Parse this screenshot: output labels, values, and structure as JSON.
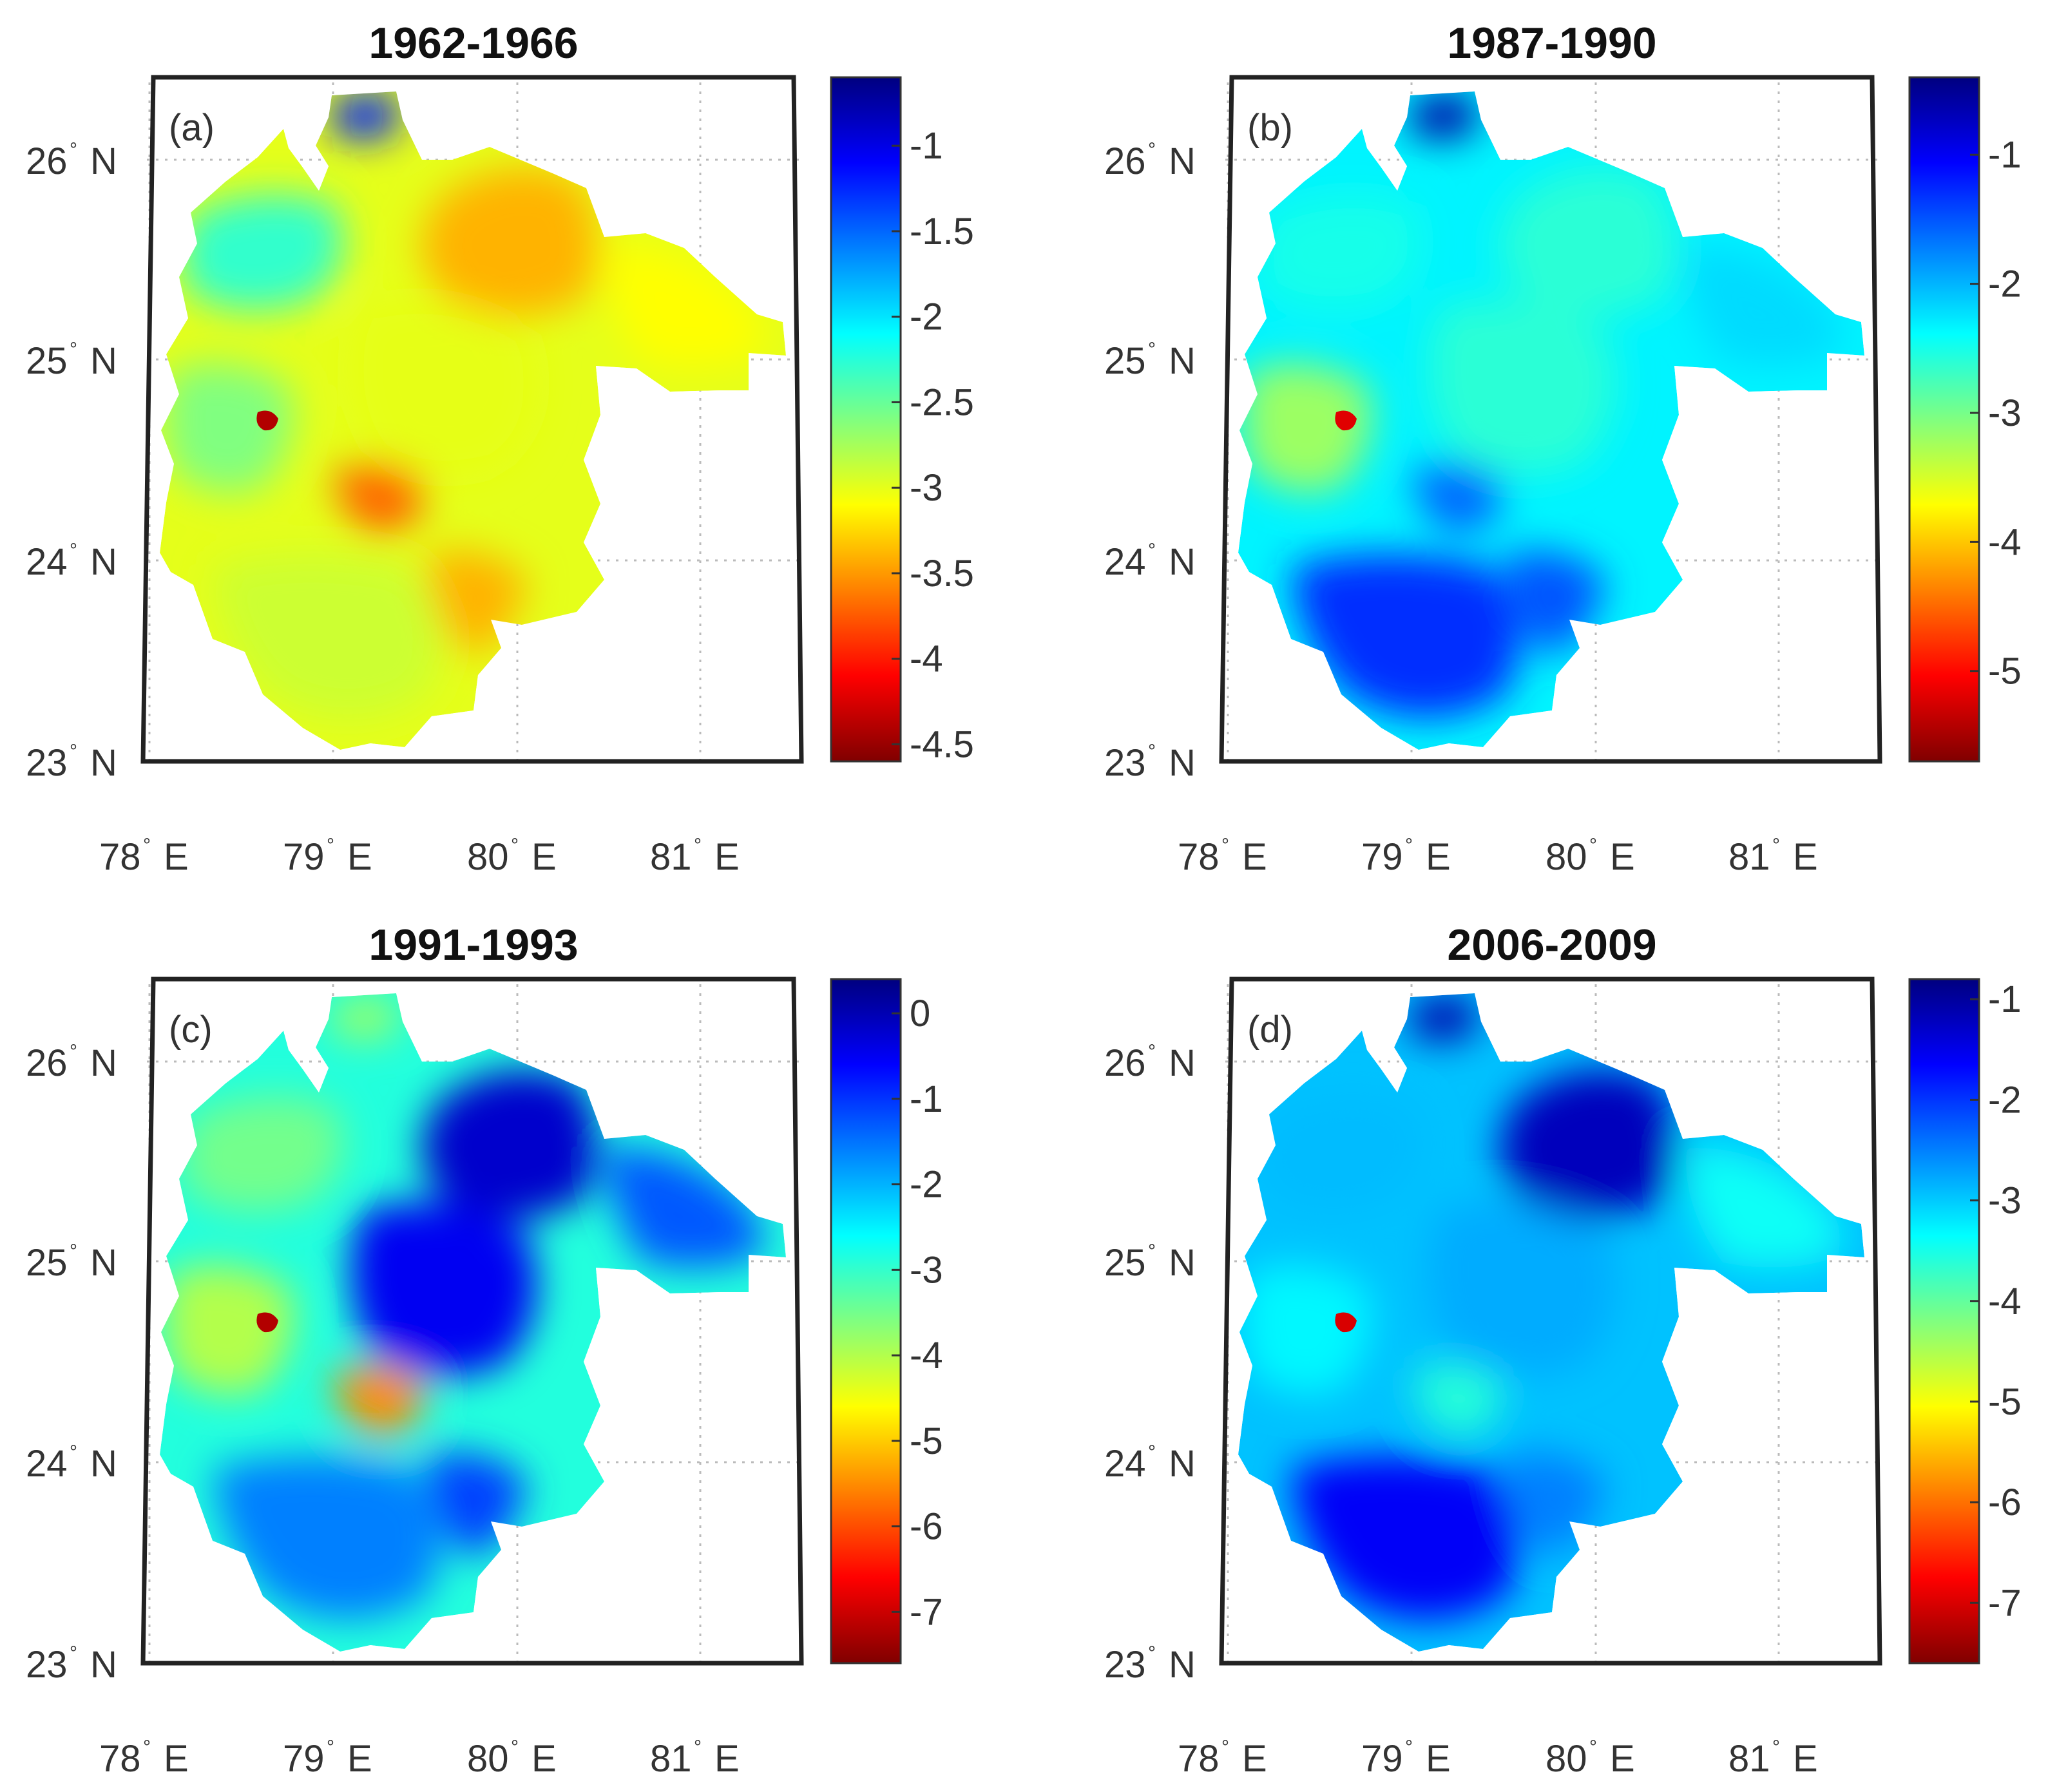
{
  "figure": {
    "panels": [
      {
        "title": "1962-1966",
        "label": "(a)",
        "colorbar": {
          "ticks": [
            "-1",
            "-1.5",
            "-2",
            "-2.5",
            "-3",
            "-3.5",
            "-4",
            "-4.5"
          ],
          "min": -4.6,
          "max": -0.6
        },
        "regions": [
          {
            "name": "north-east",
            "value": -3.4
          },
          {
            "name": "north-west",
            "value": -2.3
          },
          {
            "name": "north-tip",
            "value": -1.2
          },
          {
            "name": "west-lobe",
            "value": -2.6
          },
          {
            "name": "west-hotspot",
            "value": -4.4
          },
          {
            "name": "center",
            "value": -3.0
          },
          {
            "name": "central-patch",
            "value": -3.7
          },
          {
            "name": "south",
            "value": -2.9
          },
          {
            "name": "south-east",
            "value": -3.4
          },
          {
            "name": "east-lobe",
            "value": -3.1
          }
        ]
      },
      {
        "title": "1987-1990",
        "label": "(b)",
        "colorbar": {
          "ticks": [
            "-1",
            "-2",
            "-3",
            "-4",
            "-5"
          ],
          "min": -5.7,
          "max": -0.4
        },
        "regions": [
          {
            "name": "north-east",
            "value": -2.6
          },
          {
            "name": "north-west",
            "value": -2.5
          },
          {
            "name": "north-tip",
            "value": -0.6
          },
          {
            "name": "west-lobe",
            "value": -3.2
          },
          {
            "name": "west-hotspot",
            "value": -5.2
          },
          {
            "name": "center",
            "value": -2.6
          },
          {
            "name": "central-patch",
            "value": -1.6
          },
          {
            "name": "south",
            "value": -1.3
          },
          {
            "name": "south-east",
            "value": -1.5
          },
          {
            "name": "east-lobe",
            "value": -2.2
          }
        ]
      },
      {
        "title": "1991-1993",
        "label": "(c)",
        "colorbar": {
          "ticks": [
            "0",
            "-1",
            "-2",
            "-3",
            "-4",
            "-5",
            "-6",
            "-7"
          ],
          "min": -7.6,
          "max": 0.4
        },
        "regions": [
          {
            "name": "north-east",
            "value": -0.2
          },
          {
            "name": "north-west",
            "value": -3.5
          },
          {
            "name": "north-tip",
            "value": -3.8
          },
          {
            "name": "west-lobe",
            "value": -4.0
          },
          {
            "name": "west-hotspot",
            "value": -7.2
          },
          {
            "name": "center",
            "value": -0.5
          },
          {
            "name": "central-patch",
            "value": -5.5
          },
          {
            "name": "south",
            "value": -1.6
          },
          {
            "name": "south-east",
            "value": -1.1
          },
          {
            "name": "east-lobe",
            "value": -1.3
          }
        ]
      },
      {
        "title": "2006-2009",
        "label": "(d)",
        "colorbar": {
          "ticks": [
            "-1",
            "-2",
            "-3",
            "-4",
            "-5",
            "-6",
            "-7"
          ],
          "min": -7.6,
          "max": -0.8
        },
        "regions": [
          {
            "name": "north-east",
            "value": -1.2
          },
          {
            "name": "north-west",
            "value": -2.9
          },
          {
            "name": "north-tip",
            "value": -1.1
          },
          {
            "name": "west-lobe",
            "value": -3.3
          },
          {
            "name": "west-hotspot",
            "value": -7.0
          },
          {
            "name": "center",
            "value": -2.8
          },
          {
            "name": "central-patch",
            "value": -3.6
          },
          {
            "name": "south",
            "value": -1.6
          },
          {
            "name": "south-east",
            "value": -2.5
          },
          {
            "name": "east-lobe",
            "value": -3.4
          }
        ]
      }
    ],
    "lat_ticks": [
      {
        "deg": "26",
        "hemi": "N"
      },
      {
        "deg": "25",
        "hemi": "N"
      },
      {
        "deg": "24",
        "hemi": "N"
      },
      {
        "deg": "23",
        "hemi": "N"
      }
    ],
    "lon_ticks": [
      {
        "deg": "78",
        "hemi": "E"
      },
      {
        "deg": "79",
        "hemi": "E"
      },
      {
        "deg": "80",
        "hemi": "E"
      },
      {
        "deg": "81",
        "hemi": "E"
      }
    ],
    "degree_symbol": "°",
    "colormap": "jet"
  }
}
